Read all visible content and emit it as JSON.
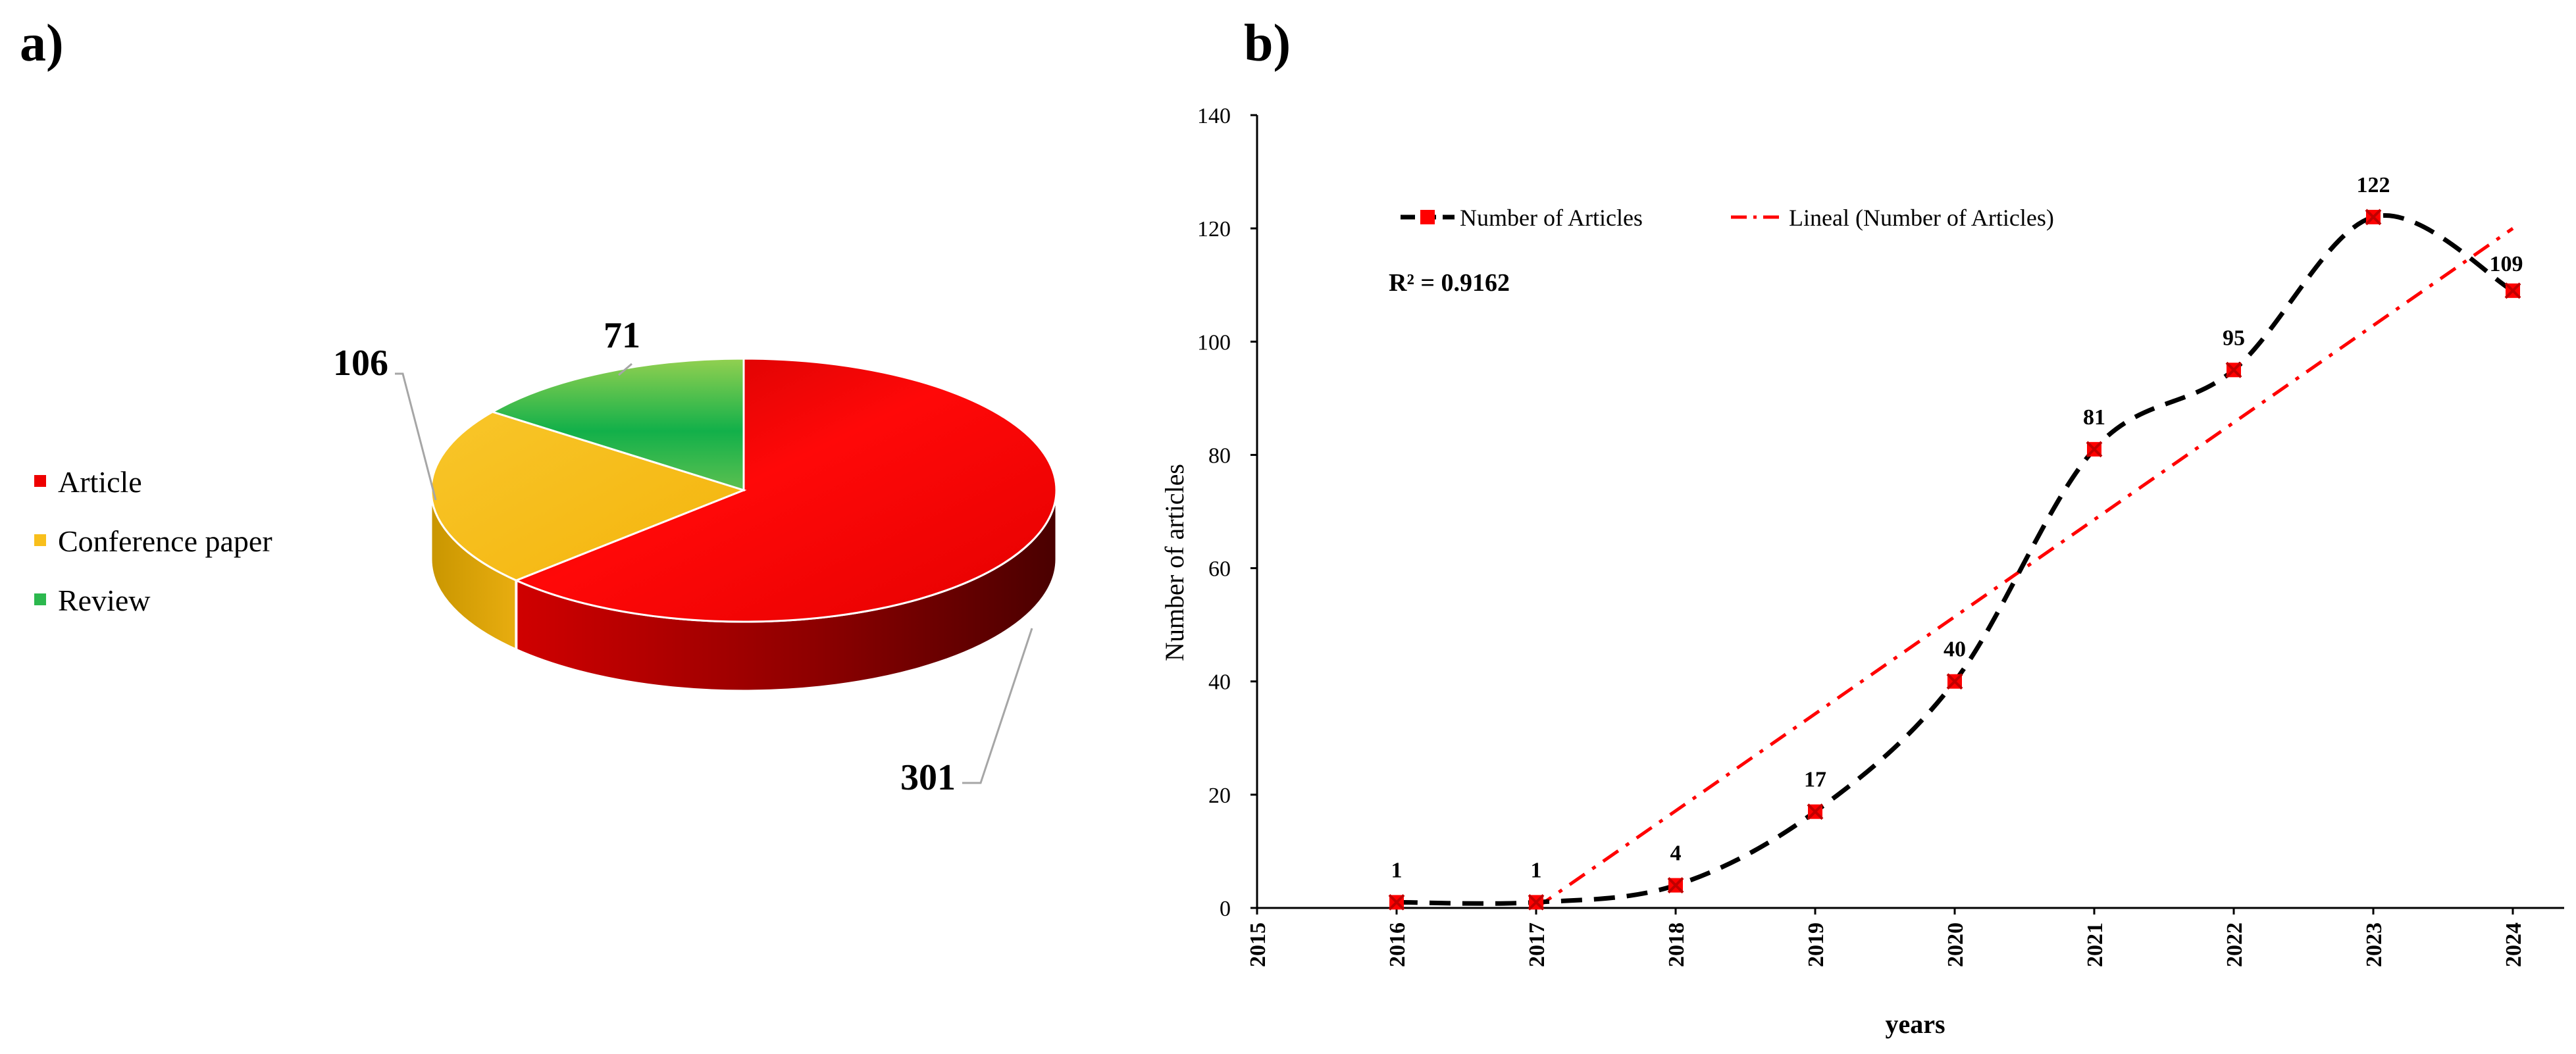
{
  "chart_data": [
    {
      "type": "pie",
      "panel_label": "a)",
      "categories": [
        "Article",
        "Conference paper",
        "Review"
      ],
      "values": [
        301,
        106,
        71
      ],
      "data_labels": [
        "301",
        "106",
        "71"
      ],
      "colors": [
        "#ee0000",
        "#f8bf1c",
        "#2cb84e"
      ],
      "legend_position": "left"
    },
    {
      "type": "line",
      "panel_label": "b)",
      "x": [
        2016,
        2017,
        2018,
        2019,
        2020,
        2021,
        2022,
        2023,
        2024
      ],
      "x_tick_labels": [
        "2015",
        "2016",
        "2017",
        "2018",
        "2019",
        "2020",
        "2021",
        "2022",
        "2023",
        "2024"
      ],
      "xlim": [
        2015,
        2024
      ],
      "series": [
        {
          "name": "Number of Articles",
          "values": [
            1,
            1,
            4,
            17,
            40,
            81,
            95,
            122,
            109
          ],
          "labels": [
            "1",
            "1",
            "4",
            "17",
            "40",
            "81",
            "95",
            "122",
            "109"
          ],
          "color": "#000000",
          "marker_color": "#ff0000"
        },
        {
          "name": "Lineal (Number of Articles)",
          "x": [
            2017,
            2024
          ],
          "values": [
            0,
            120
          ],
          "color": "#ff0000"
        }
      ],
      "y_ticks": [
        "0",
        "20",
        "40",
        "60",
        "80",
        "100",
        "120",
        "140"
      ],
      "ylim": [
        0,
        140
      ],
      "xlabel": "years",
      "ylabel": "Number of articles",
      "annotation": "R² = 0.9162",
      "legend_position": "top-left"
    }
  ]
}
